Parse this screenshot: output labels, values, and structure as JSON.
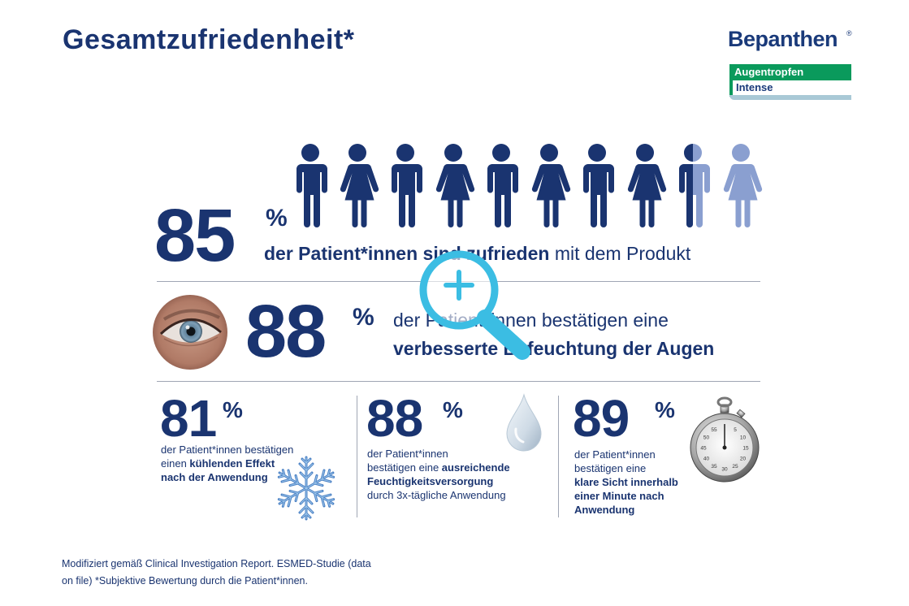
{
  "header": {
    "title": "Gesamtzufriedenheit*"
  },
  "logo": {
    "brand": "Bepanthen",
    "reg": "®",
    "line1": "Augentropfen",
    "line2": "Intense"
  },
  "stat_main": {
    "value": "85",
    "pct": "%",
    "text_bold": "der Patient*innen sind zufrieden",
    "text_regular": " mit dem Produkt",
    "people_total": 10,
    "people_filled": 8.5
  },
  "stat_eye": {
    "value": "88",
    "pct": "%",
    "line1": "der Patient*innen bestätigen eine",
    "line2": "verbesserte Befeuchtung der Augen"
  },
  "stat_cool": {
    "value": "81",
    "pct": "%",
    "text_a": "der Patient*innen bestätigen",
    "text_b": "einen ",
    "text_bold1": "kühlenden Effekt",
    "text_bold2": "nach der Anwendung"
  },
  "stat_moist": {
    "value": "88",
    "pct": "%",
    "text_a": "der Patient*innen",
    "text_b": "bestätigen eine ",
    "text_bold1": "ausreichende",
    "text_bold2": "Feuchtigkeitsversorgung",
    "text_c": "durch 3x-tägliche Anwendung"
  },
  "stat_sight": {
    "value": "89",
    "pct": "%",
    "text_a": "der Patient*innen",
    "text_b": "bestätigen eine",
    "text_bold1": "klare Sicht innerhalb",
    "text_bold2": "einer Minute nach",
    "text_bold3": "Anwendung"
  },
  "stopwatch": {
    "ticks": [
      "55",
      "5",
      "50",
      "10",
      "45",
      "15",
      "40",
      "20",
      "35",
      "30",
      "25"
    ]
  },
  "footer": {
    "line1": "Modifiziert gemäß Clinical Investigation Report. ESMED-Studie (data",
    "line2": "on file) *Subjektive Bewertung durch die Patient*innen."
  },
  "colors": {
    "navy": "#1a3470",
    "person_light": "#8a9fd0",
    "magnifier": "#3bbde3",
    "brand_green": "#0a9a5c"
  }
}
